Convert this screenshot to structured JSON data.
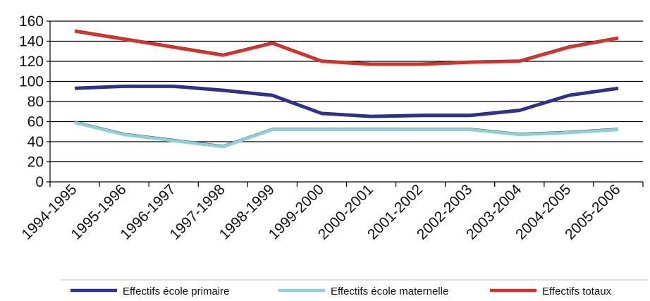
{
  "chart_data": {
    "type": "line",
    "title": "",
    "xlabel": "",
    "ylabel": "",
    "ylim": [
      0,
      160
    ],
    "yticks": [
      0,
      20,
      40,
      60,
      80,
      100,
      120,
      140,
      160
    ],
    "grid": "horizontal",
    "legend_position": "bottom",
    "categories": [
      "1994-1995",
      "1995-1996",
      "1996-1997",
      "1997-1998",
      "1998-1999",
      "1999-2000",
      "2000-2001",
      "2001-2002",
      "2002-2003",
      "2003-2004",
      "2004-2005",
      "2005-2006"
    ],
    "series": [
      {
        "name": "Effectifs école primaire",
        "color": "#2e3192",
        "values": [
          93,
          95,
          95,
          91,
          86,
          68,
          65,
          66,
          66,
          71,
          86,
          93
        ]
      },
      {
        "name": "Effectifs école maternelle",
        "color": "#8fcfd6",
        "values": [
          59,
          47,
          41,
          35,
          52,
          52,
          52,
          52,
          52,
          47,
          49,
          52
        ]
      },
      {
        "name": "Effectifs totaux",
        "color": "#d9302c",
        "values": [
          150,
          142,
          134,
          126,
          138,
          120,
          117,
          117,
          119,
          120,
          134,
          143
        ]
      }
    ]
  }
}
